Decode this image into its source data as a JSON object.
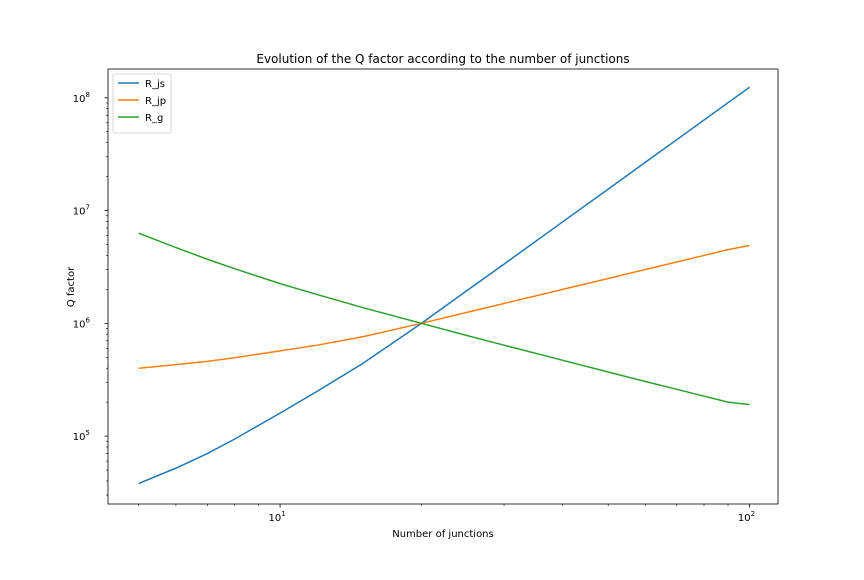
{
  "chart_data": {
    "type": "line",
    "title": "Evolution of the Q factor according to the number of junctions",
    "xlabel": "Number of junctions",
    "ylabel": "Q factor",
    "xscale": "log",
    "yscale": "log",
    "xlim": [
      4.3,
      115
    ],
    "ylim": [
      25000,
      180000000
    ],
    "xticks": [
      {
        "value": 10,
        "base": "10",
        "exp": "1"
      },
      {
        "value": 100,
        "base": "10",
        "exp": "2"
      }
    ],
    "yticks": [
      {
        "value": 100000,
        "base": "10",
        "exp": "5"
      },
      {
        "value": 1000000,
        "base": "10",
        "exp": "6"
      },
      {
        "value": 10000000,
        "base": "10",
        "exp": "7"
      },
      {
        "value": 100000000,
        "base": "10",
        "exp": "8"
      }
    ],
    "grid": false,
    "legend_position": "top-left",
    "series": [
      {
        "name": "R_js",
        "color": "#1f77b4",
        "x": [
          5,
          6,
          7,
          8,
          10,
          12,
          15,
          20,
          25,
          30,
          40,
          50,
          60,
          70,
          80,
          90,
          100
        ],
        "y": [
          38000,
          52000,
          70000,
          94000,
          160000,
          250000,
          440000,
          1000000,
          1950000,
          3350000,
          7950000,
          15500000,
          26800000,
          42500000,
          63500000,
          90500000,
          124000000
        ]
      },
      {
        "name": "R_jp",
        "color": "#ff7f0e",
        "x": [
          5,
          6,
          7,
          8,
          10,
          12,
          15,
          20,
          25,
          30,
          40,
          50,
          60,
          70,
          80,
          90,
          100
        ],
        "y": [
          400000,
          430000,
          460000,
          495000,
          570000,
          640000,
          760000,
          1000000,
          1250000,
          1500000,
          2000000,
          2500000,
          3000000,
          3500000,
          4000000,
          4500000,
          4900000
        ]
      },
      {
        "name": "R_g",
        "color": "#2ca02c",
        "x": [
          5,
          6,
          7,
          8,
          10,
          12,
          15,
          20,
          25,
          30,
          40,
          50,
          60,
          70,
          80,
          90,
          100
        ],
        "y": [
          6300000,
          4700000,
          3700000,
          3050000,
          2250000,
          1800000,
          1380000,
          1000000,
          780000,
          640000,
          470000,
          370000,
          305000,
          260000,
          226000,
          200000,
          190000
        ]
      }
    ]
  }
}
